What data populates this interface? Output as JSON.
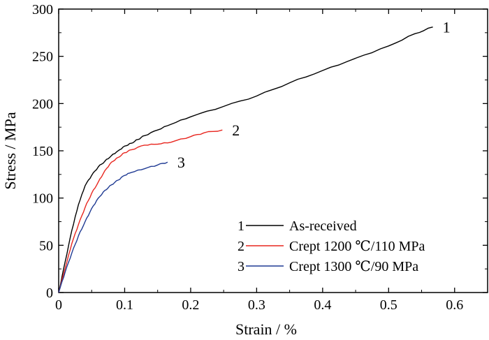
{
  "chart_data": {
    "type": "line",
    "title": "",
    "xlabel": "Strain / %",
    "ylabel": "Stress / MPa",
    "xlim": [
      0,
      0.65
    ],
    "ylim": [
      0,
      300
    ],
    "xticks": [
      0,
      0.1,
      0.2,
      0.3,
      0.4,
      0.5,
      0.6
    ],
    "xtick_labels": [
      "0",
      "0.1",
      "0.2",
      "0.3",
      "0.4",
      "0.5",
      "0.6"
    ],
    "yticks": [
      0,
      50,
      100,
      150,
      200,
      250,
      300
    ],
    "ytick_labels": [
      "0",
      "50",
      "100",
      "150",
      "200",
      "250",
      "300"
    ],
    "grid": false,
    "legend_position": "bottom-right",
    "series": [
      {
        "name": "As-received",
        "marker": "1",
        "color": "#000000",
        "x": [
          0,
          0.01,
          0.02,
          0.03,
          0.04,
          0.05,
          0.06,
          0.07,
          0.08,
          0.09,
          0.1,
          0.11,
          0.12,
          0.13,
          0.15,
          0.17,
          0.2,
          0.25,
          0.3,
          0.35,
          0.4,
          0.45,
          0.5,
          0.54,
          0.567
        ],
        "y": [
          0,
          33,
          66,
          93,
          113,
          124,
          133,
          139,
          145,
          150,
          155,
          158,
          162,
          166,
          172,
          178,
          186,
          197,
          208,
          222,
          235,
          248,
          261,
          274,
          281
        ]
      },
      {
        "name": "Crept 1200 ℃/110 MPa",
        "marker": "2",
        "color": "#e8261f",
        "x": [
          0,
          0.01,
          0.02,
          0.03,
          0.04,
          0.05,
          0.06,
          0.07,
          0.08,
          0.09,
          0.1,
          0.11,
          0.13,
          0.15,
          0.17,
          0.2,
          0.22,
          0.248
        ],
        "y": [
          0,
          26,
          52,
          72,
          90,
          105,
          117,
          129,
          138,
          143,
          148,
          151,
          156,
          157,
          159,
          165,
          169,
          172
        ]
      },
      {
        "name": "Crept 1300 ℃/90 MPa",
        "marker": "3",
        "color": "#1f3a93",
        "x": [
          0,
          0.01,
          0.02,
          0.03,
          0.04,
          0.05,
          0.06,
          0.07,
          0.08,
          0.09,
          0.1,
          0.11,
          0.13,
          0.15,
          0.165
        ],
        "y": [
          0,
          22,
          42,
          60,
          75,
          89,
          100,
          108,
          114,
          119,
          124,
          127,
          131,
          135,
          138
        ]
      }
    ]
  }
}
